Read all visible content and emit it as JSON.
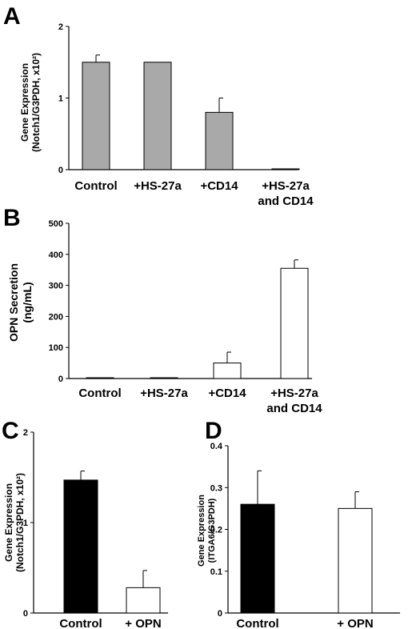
{
  "chart_data": [
    {
      "panel": "A",
      "type": "bar",
      "categories": [
        [
          "Control"
        ],
        [
          "+HS-27a"
        ],
        [
          "+CD14"
        ],
        [
          "+HS-27a",
          "and CD14"
        ]
      ],
      "values": [
        1.5,
        1.5,
        0.8,
        0.0
      ],
      "errors": [
        0.1,
        0.0,
        0.2,
        0.0
      ],
      "ylabel": [
        "Gene Expression",
        "(Notch1/G3PDH, x10²)"
      ],
      "yticks": [
        "0",
        "1",
        "2"
      ],
      "ylim": [
        0,
        2
      ],
      "bar_color": "#a9a9a9",
      "grid": false
    },
    {
      "panel": "B",
      "type": "bar",
      "categories": [
        [
          "Control"
        ],
        [
          "+HS-27a"
        ],
        [
          "+CD14"
        ],
        [
          "+HS-27a",
          "and CD14"
        ]
      ],
      "values": [
        1,
        1,
        50,
        355
      ],
      "errors": [
        0,
        0,
        35,
        27
      ],
      "ylabel": [
        "OPN Secretion",
        "(ng/mL)"
      ],
      "yticks": [
        "0",
        "100",
        "200",
        "300",
        "400",
        "500"
      ],
      "ylim": [
        0,
        500
      ],
      "bar_color": "#ffffff",
      "grid": false
    },
    {
      "panel": "C",
      "type": "bar",
      "categories": [
        [
          "Control"
        ],
        [
          "+ OPN"
        ]
      ],
      "values": [
        1.47,
        0.28
      ],
      "errors": [
        0.1,
        0.19
      ],
      "ylabel": [
        "Gene Expression",
        "(Notch1/G3PDH, x10²)"
      ],
      "yticks": [
        "0",
        "1",
        "2"
      ],
      "ylim": [
        0,
        2
      ],
      "bar_colors": [
        "#000000",
        "#ffffff"
      ],
      "grid": false
    },
    {
      "panel": "D",
      "type": "bar",
      "categories": [
        [
          "Control"
        ],
        [
          "+ OPN"
        ]
      ],
      "values": [
        0.26,
        0.25
      ],
      "errors": [
        0.08,
        0.04
      ],
      "ylabel": [
        "Gene Expression",
        "(ITGA6/G3PDH)"
      ],
      "yticks": [
        "0",
        "0.1",
        "0.2",
        "0.3",
        "0.4"
      ],
      "ylim": [
        0,
        0.4
      ],
      "bar_colors": [
        "#000000",
        "#ffffff"
      ],
      "grid": false
    }
  ]
}
